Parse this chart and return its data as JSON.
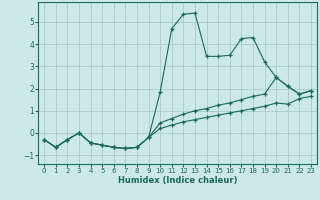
{
  "title": "",
  "xlabel": "Humidex (Indice chaleur)",
  "ylabel": "",
  "background_color": "#cce8e8",
  "grid_color": "#aacccc",
  "line_color": "#1a6b5a",
  "xlim": [
    -0.5,
    23.5
  ],
  "ylim": [
    -1.4,
    5.9
  ],
  "xticks": [
    0,
    1,
    2,
    3,
    4,
    5,
    6,
    7,
    8,
    9,
    10,
    11,
    12,
    13,
    14,
    15,
    16,
    17,
    18,
    19,
    20,
    21,
    22,
    23
  ],
  "yticks": [
    -1,
    0,
    1,
    2,
    3,
    4,
    5
  ],
  "series": [
    {
      "x": [
        0,
        1,
        2,
        3,
        4,
        5,
        6,
        7,
        8,
        9,
        10,
        11,
        12,
        13,
        14,
        15,
        16,
        17,
        18,
        19,
        20,
        21,
        22,
        23
      ],
      "y": [
        -0.3,
        -0.65,
        -0.3,
        0.0,
        -0.45,
        -0.55,
        -0.65,
        -0.7,
        -0.65,
        -0.2,
        1.85,
        4.7,
        5.35,
        5.4,
        3.45,
        3.45,
        3.5,
        4.25,
        4.3,
        3.2,
        2.5,
        2.1,
        1.75,
        1.9
      ]
    },
    {
      "x": [
        0,
        1,
        2,
        3,
        4,
        5,
        6,
        7,
        8,
        9,
        10,
        11,
        12,
        13,
        14,
        15,
        16,
        17,
        18,
        19,
        20,
        21,
        22,
        23
      ],
      "y": [
        -0.3,
        -0.65,
        -0.3,
        0.0,
        -0.45,
        -0.55,
        -0.65,
        -0.7,
        -0.65,
        -0.2,
        0.45,
        0.65,
        0.85,
        1.0,
        1.1,
        1.25,
        1.35,
        1.5,
        1.65,
        1.75,
        2.5,
        2.1,
        1.75,
        1.9
      ]
    },
    {
      "x": [
        0,
        1,
        2,
        3,
        4,
        5,
        6,
        7,
        8,
        9,
        10,
        11,
        12,
        13,
        14,
        15,
        16,
        17,
        18,
        19,
        20,
        21,
        22,
        23
      ],
      "y": [
        -0.3,
        -0.65,
        -0.3,
        0.0,
        -0.45,
        -0.55,
        -0.65,
        -0.7,
        -0.65,
        -0.2,
        0.2,
        0.35,
        0.5,
        0.6,
        0.7,
        0.8,
        0.9,
        1.0,
        1.1,
        1.2,
        1.35,
        1.3,
        1.55,
        1.65
      ]
    }
  ]
}
